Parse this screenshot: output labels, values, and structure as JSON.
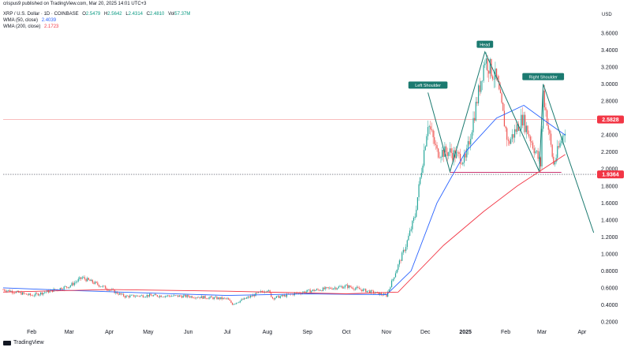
{
  "header": {
    "published": "crispus9 published on TradingView.com, Mar 20, 2025 14:01 UTC+3"
  },
  "legend": {
    "symbol": "XRP / U.S. Dollar · 1D · COINBASE",
    "ohlc": [
      {
        "k": "O",
        "v": "2.5479"
      },
      {
        "k": "H",
        "v": "2.5642"
      },
      {
        "k": "L",
        "v": "2.4314"
      },
      {
        "k": "C",
        "v": "2.4810"
      },
      {
        "k": "Vol",
        "v": "57.37M"
      }
    ],
    "wma50": {
      "label": "WMA (50, close)",
      "value": "2.4039"
    },
    "wma200": {
      "label": "WMA (200, close)",
      "value": "2.1723"
    }
  },
  "footer": {
    "brand": "TradingView"
  },
  "colors": {
    "up": "#26a69a",
    "down": "#ef5350",
    "wma50": "#2962ff",
    "wma200": "#f23645",
    "pattern": "#1b7a70",
    "badge_red": "#f23645"
  },
  "chart_data": {
    "type": "line",
    "title": "XRP / U.S. Dollar · 1D · COINBASE",
    "currency": "USD",
    "y_ticks": [
      "0.2000",
      "0.4000",
      "0.6000",
      "0.8000",
      "1.0000",
      "1.2000",
      "1.4000",
      "1.6000",
      "1.8000",
      "2.0000",
      "2.2000",
      "2.4000",
      "2.6000",
      "2.8000",
      "3.0000",
      "3.2000",
      "3.4000",
      "3.6000"
    ],
    "ylim": [
      0.2,
      3.6
    ],
    "x_ticks": [
      "Feb",
      "Mar",
      "Apr",
      "May",
      "Jun",
      "Jul",
      "Aug",
      "Sep",
      "Oct",
      "Nov",
      "Dec",
      "2025",
      "Feb",
      "Mar",
      "Apr"
    ],
    "xlim": [
      "2024-01-10",
      "2025-04-12"
    ],
    "series": [
      {
        "name": "XRP / U.S. Dollar",
        "style": "candles",
        "values": [
          [
            "2024-01-10",
            0.58
          ],
          [
            "2024-02-01",
            0.51
          ],
          [
            "2024-03-01",
            0.62
          ],
          [
            "2024-03-11",
            0.72
          ],
          [
            "2024-04-01",
            0.58
          ],
          [
            "2024-04-13",
            0.5
          ],
          [
            "2024-05-01",
            0.51
          ],
          [
            "2024-06-01",
            0.5
          ],
          [
            "2024-07-01",
            0.47
          ],
          [
            "2024-07-05",
            0.41
          ],
          [
            "2024-08-01",
            0.58
          ],
          [
            "2024-08-05",
            0.48
          ],
          [
            "2024-09-01",
            0.56
          ],
          [
            "2024-10-01",
            0.62
          ],
          [
            "2024-11-01",
            0.51
          ],
          [
            "2024-11-16",
            1.1
          ],
          [
            "2024-11-23",
            1.45
          ],
          [
            "2024-12-03",
            2.55
          ],
          [
            "2024-12-10",
            2.2
          ],
          [
            "2024-12-20",
            2.2
          ],
          [
            "2025-01-01",
            2.1
          ],
          [
            "2025-01-16",
            3.3
          ],
          [
            "2025-01-25",
            3.05
          ],
          [
            "2025-02-03",
            2.3
          ],
          [
            "2025-02-14",
            2.6
          ],
          [
            "2025-02-28",
            2.05
          ],
          [
            "2025-03-02",
            2.9
          ],
          [
            "2025-03-10",
            2.05
          ],
          [
            "2025-03-19",
            2.48
          ]
        ]
      },
      {
        "name": "WMA (50, close)",
        "values": [
          [
            "2024-01-10",
            0.6
          ],
          [
            "2024-03-01",
            0.57
          ],
          [
            "2024-05-01",
            0.54
          ],
          [
            "2024-07-01",
            0.51
          ],
          [
            "2024-09-01",
            0.53
          ],
          [
            "2024-11-01",
            0.52
          ],
          [
            "2024-11-20",
            0.8
          ],
          [
            "2024-12-10",
            1.6
          ],
          [
            "2025-01-01",
            2.2
          ],
          [
            "2025-01-25",
            2.6
          ],
          [
            "2025-02-15",
            2.75
          ],
          [
            "2025-03-05",
            2.55
          ],
          [
            "2025-03-19",
            2.4
          ]
        ]
      },
      {
        "name": "WMA (200, close)",
        "values": [
          [
            "2024-01-10",
            0.55
          ],
          [
            "2024-04-01",
            0.58
          ],
          [
            "2024-07-01",
            0.56
          ],
          [
            "2024-10-01",
            0.53
          ],
          [
            "2024-11-10",
            0.55
          ],
          [
            "2024-12-15",
            1.1
          ],
          [
            "2025-01-15",
            1.5
          ],
          [
            "2025-02-10",
            1.8
          ],
          [
            "2025-03-19",
            2.17
          ]
        ]
      }
    ],
    "pattern_line": [
      [
        "2024-12-03",
        2.9
      ],
      [
        "2024-12-20",
        1.97
      ],
      [
        "2025-01-16",
        3.38
      ],
      [
        "2025-02-27",
        1.97
      ],
      [
        "2025-03-02",
        3.0
      ],
      [
        "2025-04-10",
        1.25
      ]
    ],
    "neckline": [
      [
        "2024-12-20",
        1.96
      ],
      [
        "2025-03-16",
        1.96
      ]
    ],
    "horizontal_levels": [
      {
        "value": 2.5828,
        "label": "2.5828"
      },
      {
        "value": 1.9364,
        "label": "1.9364"
      }
    ],
    "annotations": [
      {
        "text": "Left Shoulder",
        "at": [
          "2024-12-03",
          2.9
        ]
      },
      {
        "text": "Head",
        "at": [
          "2025-01-16",
          3.38
        ]
      },
      {
        "text": "Right Shoulder",
        "at": [
          "2025-03-02",
          3.0
        ]
      }
    ]
  }
}
